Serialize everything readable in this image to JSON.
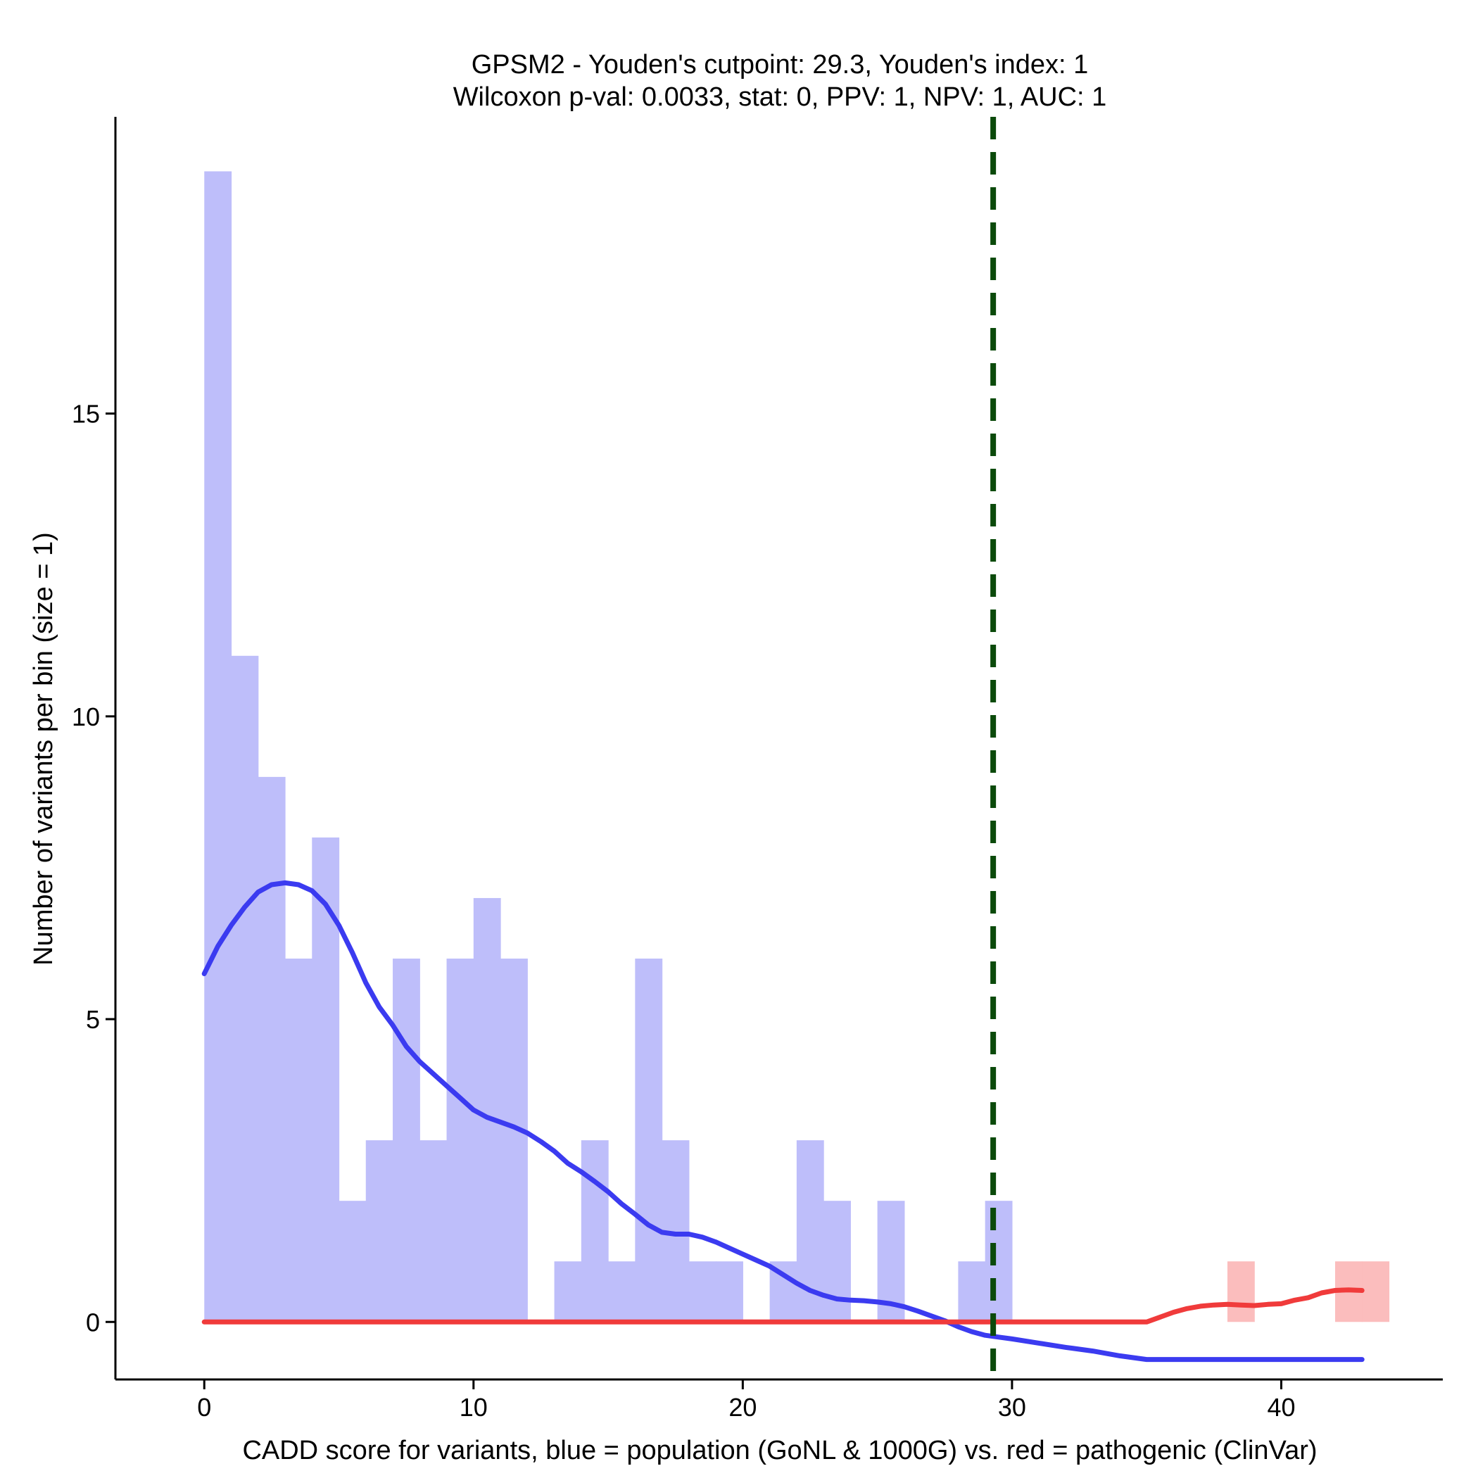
{
  "chart_data": {
    "type": "bar",
    "title_line1": "GPSM2 - Youden's cutpoint: 29.3, Youden's index: 1",
    "title_line2": "Wilcoxon p-val: 0.0033, stat: 0, PPV: 1, NPV: 1, AUC: 1",
    "xlabel": "CADD score for variants, blue = population (GoNL & 1000G) vs. red = pathogenic (ClinVar)",
    "ylabel": "Number of variants per bin (size = 1)",
    "xlim": [
      -3.3,
      46
    ],
    "ylim": [
      -0.95,
      19.9
    ],
    "x_ticks": [
      0,
      10,
      20,
      30,
      40
    ],
    "y_ticks": [
      0,
      5,
      10,
      15
    ],
    "bin_width": 1,
    "series": [
      {
        "name": "population",
        "color": "#bebefa",
        "bins": [
          {
            "start": 0,
            "count": 19
          },
          {
            "start": 1,
            "count": 11
          },
          {
            "start": 2,
            "count": 9
          },
          {
            "start": 3,
            "count": 6
          },
          {
            "start": 4,
            "count": 8
          },
          {
            "start": 5,
            "count": 2
          },
          {
            "start": 6,
            "count": 3
          },
          {
            "start": 7,
            "count": 6
          },
          {
            "start": 8,
            "count": 3
          },
          {
            "start": 9,
            "count": 6
          },
          {
            "start": 10,
            "count": 7
          },
          {
            "start": 11,
            "count": 6
          },
          {
            "start": 13,
            "count": 1
          },
          {
            "start": 14,
            "count": 3
          },
          {
            "start": 15,
            "count": 1
          },
          {
            "start": 16,
            "count": 6
          },
          {
            "start": 17,
            "count": 3
          },
          {
            "start": 18,
            "count": 1
          },
          {
            "start": 19,
            "count": 1
          },
          {
            "start": 21,
            "count": 1
          },
          {
            "start": 22,
            "count": 3
          },
          {
            "start": 23,
            "count": 2
          },
          {
            "start": 25,
            "count": 2
          },
          {
            "start": 28,
            "count": 1
          },
          {
            "start": 29,
            "count": 2
          }
        ]
      },
      {
        "name": "pathogenic",
        "color": "#fbbdbd",
        "bins": [
          {
            "start": 38,
            "count": 1
          },
          {
            "start": 42,
            "count": 1
          },
          {
            "start": 43,
            "count": 1
          }
        ]
      }
    ],
    "density_lines": [
      {
        "name": "population density",
        "color": "#3b3bf0",
        "points": [
          [
            0,
            5.75
          ],
          [
            0.5,
            6.2
          ],
          [
            1,
            6.55
          ],
          [
            1.5,
            6.85
          ],
          [
            2,
            7.1
          ],
          [
            2.5,
            7.22
          ],
          [
            3,
            7.25
          ],
          [
            3.5,
            7.22
          ],
          [
            4,
            7.12
          ],
          [
            4.5,
            6.9
          ],
          [
            5,
            6.55
          ],
          [
            5.5,
            6.1
          ],
          [
            6,
            5.6
          ],
          [
            6.5,
            5.2
          ],
          [
            7,
            4.9
          ],
          [
            7.5,
            4.55
          ],
          [
            8,
            4.3
          ],
          [
            8.5,
            4.1
          ],
          [
            9,
            3.9
          ],
          [
            9.5,
            3.7
          ],
          [
            10,
            3.5
          ],
          [
            10.5,
            3.38
          ],
          [
            11,
            3.3
          ],
          [
            11.5,
            3.22
          ],
          [
            12,
            3.12
          ],
          [
            12.5,
            2.98
          ],
          [
            13,
            2.82
          ],
          [
            13.5,
            2.62
          ],
          [
            14,
            2.48
          ],
          [
            14.5,
            2.32
          ],
          [
            15,
            2.15
          ],
          [
            15.5,
            1.95
          ],
          [
            16,
            1.78
          ],
          [
            16.5,
            1.6
          ],
          [
            17,
            1.48
          ],
          [
            17.5,
            1.45
          ],
          [
            18,
            1.45
          ],
          [
            18.5,
            1.4
          ],
          [
            19,
            1.32
          ],
          [
            19.5,
            1.22
          ],
          [
            20,
            1.12
          ],
          [
            20.5,
            1.02
          ],
          [
            21,
            0.92
          ],
          [
            21.5,
            0.78
          ],
          [
            22,
            0.64
          ],
          [
            22.5,
            0.52
          ],
          [
            23,
            0.44
          ],
          [
            23.5,
            0.38
          ],
          [
            24,
            0.36
          ],
          [
            24.5,
            0.35
          ],
          [
            25,
            0.33
          ],
          [
            25.5,
            0.3
          ],
          [
            26,
            0.25
          ],
          [
            26.5,
            0.18
          ],
          [
            27,
            0.1
          ],
          [
            27.5,
            0.02
          ],
          [
            28,
            -0.08
          ],
          [
            28.5,
            -0.16
          ],
          [
            29,
            -0.22
          ],
          [
            29.5,
            -0.25
          ],
          [
            30,
            -0.28
          ],
          [
            31,
            -0.35
          ],
          [
            32,
            -0.42
          ],
          [
            33,
            -0.48
          ],
          [
            34,
            -0.56
          ],
          [
            35,
            -0.62
          ],
          [
            36,
            -0.62
          ],
          [
            43,
            -0.62
          ]
        ]
      },
      {
        "name": "pathogenic density",
        "color": "#f03b3b",
        "points": [
          [
            0,
            0
          ],
          [
            35,
            0
          ],
          [
            35.5,
            0.08
          ],
          [
            36,
            0.16
          ],
          [
            36.5,
            0.22
          ],
          [
            37,
            0.26
          ],
          [
            37.5,
            0.28
          ],
          [
            38,
            0.29
          ],
          [
            38.5,
            0.28
          ],
          [
            39,
            0.27
          ],
          [
            39.5,
            0.29
          ],
          [
            40,
            0.3
          ],
          [
            40.5,
            0.36
          ],
          [
            41,
            0.4
          ],
          [
            41.5,
            0.48
          ],
          [
            42,
            0.52
          ],
          [
            42.5,
            0.53
          ],
          [
            43,
            0.52
          ]
        ]
      }
    ],
    "cutpoint": {
      "x": 29.3,
      "color": "#0b4a0b",
      "label": "Youden's cutpoint"
    }
  }
}
